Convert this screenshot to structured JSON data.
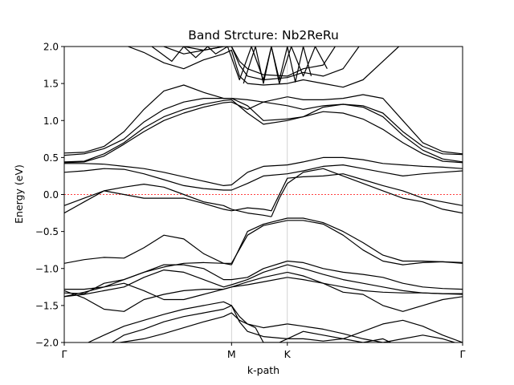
{
  "chart_data": {
    "type": "line",
    "title": "Band Strcture: Nb2ReRu",
    "xlabel": "k-path",
    "ylabel": "Energy (eV)",
    "ylim": [
      -2.0,
      2.0
    ],
    "yticks": [
      {
        "value": -2.0,
        "label": "−2.0"
      },
      {
        "value": -1.5,
        "label": "−1.5"
      },
      {
        "value": -1.0,
        "label": "−1.0"
      },
      {
        "value": -0.5,
        "label": "−0.5"
      },
      {
        "value": 0.0,
        "label": "0.0"
      },
      {
        "value": 0.5,
        "label": "0.5"
      },
      {
        "value": 1.0,
        "label": "1.0"
      },
      {
        "value": 1.5,
        "label": "1.5"
      },
      {
        "value": 2.0,
        "label": "2.0"
      }
    ],
    "xrange": [
      0,
      1
    ],
    "high_symmetry_points": [
      {
        "label": "Γ",
        "x": 0.0
      },
      {
        "label": "M",
        "x": 0.42
      },
      {
        "label": "K",
        "x": 0.56
      },
      {
        "label": "Γ",
        "x": 1.0
      }
    ],
    "fermi_level": 0.0,
    "line_color": "#000000",
    "fermi_color": "#ff0000",
    "grid": false,
    "series": [
      {
        "x": [
          0,
          0.05,
          0.1,
          0.15,
          0.2,
          0.25,
          0.3,
          0.35,
          0.4,
          0.42
        ],
        "values": [
          -1.33,
          -1.34,
          -1.2,
          -1.15,
          -1.05,
          -0.98,
          -0.93,
          -0.92,
          -0.93,
          -0.93
        ]
      },
      {
        "x": [
          0.42,
          0.46,
          0.5,
          0.56
        ],
        "values": [
          -0.93,
          -0.55,
          -0.42,
          -0.35
        ]
      },
      {
        "x": [
          0.56,
          0.6,
          0.65,
          0.7,
          0.75,
          0.8,
          0.85,
          0.9,
          0.95,
          1.0
        ],
        "values": [
          -0.35,
          -0.35,
          -0.4,
          -0.55,
          -0.75,
          -0.9,
          -0.95,
          -0.92,
          -0.91,
          -0.92
        ]
      },
      {
        "x": [
          0,
          0.05,
          0.1,
          0.15,
          0.2,
          0.25,
          0.3,
          0.35,
          0.4,
          0.42
        ],
        "values": [
          -0.93,
          -0.88,
          -0.85,
          -0.86,
          -0.72,
          -0.55,
          -0.6,
          -0.8,
          -0.93,
          -0.95
        ]
      },
      {
        "x": [
          0.42,
          0.46,
          0.5,
          0.56
        ],
        "values": [
          -0.95,
          -0.5,
          -0.4,
          -0.32
        ]
      },
      {
        "x": [
          0.56,
          0.6,
          0.65,
          0.7,
          0.75,
          0.8,
          0.85,
          0.9,
          0.95,
          1.0
        ],
        "values": [
          -0.32,
          -0.32,
          -0.38,
          -0.5,
          -0.65,
          -0.82,
          -0.9,
          -0.9,
          -0.91,
          -0.93
        ]
      },
      {
        "x": [
          0,
          0.05,
          0.1,
          0.15,
          0.2,
          0.25,
          0.3,
          0.35,
          0.4,
          0.42,
          0.46,
          0.5,
          0.52
        ],
        "values": [
          -0.15,
          -0.05,
          0.05,
          0.1,
          0.14,
          0.1,
          0.0,
          -0.1,
          -0.15,
          -0.2,
          -0.25,
          -0.28,
          -0.3
        ]
      },
      {
        "x": [
          0.52,
          0.54,
          0.56,
          0.6,
          0.65,
          0.7,
          0.75,
          0.8,
          0.85,
          0.9,
          0.95,
          1.0
        ],
        "values": [
          -0.3,
          -0.05,
          0.15,
          0.3,
          0.35,
          0.25,
          0.15,
          0.05,
          -0.05,
          -0.1,
          -0.2,
          -0.25
        ]
      },
      {
        "x": [
          0,
          0.05,
          0.1,
          0.15,
          0.2,
          0.25,
          0.3,
          0.35,
          0.4,
          0.42
        ],
        "values": [
          -0.25,
          -0.1,
          0.05,
          0.0,
          -0.05,
          -0.05,
          -0.05,
          -0.12,
          -0.2,
          -0.22
        ]
      },
      {
        "x": [
          0.42,
          0.46,
          0.5,
          0.52,
          0.56,
          0.6,
          0.65,
          0.7,
          0.75,
          0.8,
          0.85,
          0.9,
          0.95,
          1.0
        ],
        "values": [
          -0.22,
          -0.18,
          -0.2,
          -0.22,
          0.22,
          0.24,
          0.25,
          0.28,
          0.2,
          0.12,
          0.05,
          -0.05,
          -0.1,
          -0.15
        ]
      },
      {
        "x": [
          0,
          0.05,
          0.1,
          0.15,
          0.2,
          0.25,
          0.3,
          0.35,
          0.4,
          0.42,
          0.46,
          0.5,
          0.56
        ],
        "values": [
          0.3,
          0.32,
          0.35,
          0.34,
          0.28,
          0.2,
          0.12,
          0.08,
          0.06,
          0.06,
          0.15,
          0.25,
          0.28
        ]
      },
      {
        "x": [
          0.56,
          0.6,
          0.65,
          0.7,
          0.75,
          0.8,
          0.85,
          0.9,
          0.95,
          1.0
        ],
        "values": [
          0.28,
          0.32,
          0.38,
          0.4,
          0.35,
          0.3,
          0.25,
          0.28,
          0.3,
          0.32
        ]
      },
      {
        "x": [
          0,
          0.05,
          0.1,
          0.15,
          0.2,
          0.25,
          0.3,
          0.35,
          0.4,
          0.42,
          0.46,
          0.5,
          0.56
        ],
        "values": [
          0.42,
          0.42,
          0.41,
          0.38,
          0.35,
          0.3,
          0.24,
          0.18,
          0.12,
          0.13,
          0.3,
          0.38,
          0.4
        ]
      },
      {
        "x": [
          0.56,
          0.6,
          0.65,
          0.7,
          0.75,
          0.8,
          0.85,
          0.9,
          0.95,
          1.0
        ],
        "values": [
          0.4,
          0.44,
          0.5,
          0.5,
          0.47,
          0.42,
          0.4,
          0.38,
          0.37,
          0.35
        ]
      },
      {
        "x": [
          0,
          0.05,
          0.1,
          0.15,
          0.2,
          0.25,
          0.3,
          0.35,
          0.4,
          0.42,
          0.46,
          0.5,
          0.56
        ],
        "values": [
          0.53,
          0.55,
          0.62,
          0.75,
          0.98,
          1.15,
          1.25,
          1.3,
          1.3,
          1.3,
          1.28,
          1.25,
          1.32
        ]
      },
      {
        "x": [
          0.56,
          0.6,
          0.65,
          0.7,
          0.75,
          0.8,
          0.85,
          0.9,
          0.95,
          1.0
        ],
        "values": [
          1.32,
          1.28,
          1.28,
          1.3,
          1.35,
          1.3,
          1.0,
          0.7,
          0.58,
          0.55
        ]
      },
      {
        "x": [
          0,
          0.05,
          0.1,
          0.15,
          0.2,
          0.25,
          0.3,
          0.35,
          0.4,
          0.42,
          0.46,
          0.5,
          0.56
        ],
        "values": [
          0.56,
          0.57,
          0.65,
          0.85,
          1.15,
          1.4,
          1.48,
          1.38,
          1.3,
          1.3,
          1.2,
          1.0,
          1.02
        ]
      },
      {
        "x": [
          0.56,
          0.6,
          0.65,
          0.7,
          0.75,
          0.8,
          0.85,
          0.9,
          0.95,
          1.0
        ],
        "values": [
          1.02,
          1.05,
          1.18,
          1.22,
          1.2,
          1.1,
          0.85,
          0.65,
          0.55,
          0.54
        ]
      },
      {
        "x": [
          0,
          0.05,
          0.1,
          0.15,
          0.2,
          0.25,
          0.3,
          0.35,
          0.4,
          0.42,
          0.46,
          0.5,
          0.56
        ],
        "values": [
          0.44,
          0.45,
          0.55,
          0.7,
          0.9,
          1.05,
          1.15,
          1.22,
          1.27,
          1.28,
          1.1,
          0.95,
          1.0
        ]
      },
      {
        "x": [
          0.56,
          0.6,
          0.65,
          0.7,
          0.75,
          0.8,
          0.85,
          0.9,
          0.95,
          1.0
        ],
        "values": [
          1.0,
          1.05,
          1.12,
          1.1,
          1.02,
          0.88,
          0.7,
          0.55,
          0.45,
          0.43
        ]
      },
      {
        "x": [
          0,
          0.05,
          0.1,
          0.15,
          0.2,
          0.25,
          0.3,
          0.35,
          0.4,
          0.42,
          0.46,
          0.5,
          0.56
        ],
        "values": [
          0.43,
          0.44,
          0.52,
          0.68,
          0.85,
          1.0,
          1.1,
          1.18,
          1.24,
          1.25,
          1.15,
          1.25,
          1.2
        ]
      },
      {
        "x": [
          0.56,
          0.6,
          0.65,
          0.7,
          0.75,
          0.8,
          0.85,
          0.9,
          0.95,
          1.0
        ],
        "values": [
          1.2,
          1.15,
          1.2,
          1.22,
          1.18,
          1.05,
          0.8,
          0.6,
          0.48,
          0.44
        ]
      },
      {
        "x": [
          0.16,
          0.2,
          0.25,
          0.3,
          0.35,
          0.4,
          0.42,
          0.44,
          0.46,
          0.5,
          0.56,
          0.6,
          0.65,
          0.7,
          0.75,
          0.8,
          0.84
        ],
        "values": [
          2.0,
          1.92,
          1.78,
          1.7,
          1.82,
          1.9,
          1.95,
          1.6,
          1.5,
          1.48,
          1.5,
          1.55,
          1.5,
          1.45,
          1.55,
          1.8,
          2.0
        ]
      },
      {
        "x": [
          0.25,
          0.3,
          0.35,
          0.4,
          0.42,
          0.44,
          0.46,
          0.5,
          0.56,
          0.6,
          0.65,
          0.7,
          0.74
        ],
        "values": [
          2.0,
          1.9,
          1.95,
          2.0,
          2.0,
          1.75,
          1.6,
          1.55,
          1.58,
          1.65,
          1.6,
          1.7,
          2.0
        ]
      },
      {
        "x": [
          0.3,
          0.35,
          0.4,
          0.42,
          0.44,
          0.46,
          0.5,
          0.56,
          0.6,
          0.65,
          0.68
        ],
        "values": [
          2.0,
          1.95,
          2.0,
          2.0,
          1.8,
          1.7,
          1.62,
          1.6,
          1.7,
          1.75,
          2.0
        ]
      },
      {
        "x": [
          0.22,
          0.27,
          0.3,
          0.33,
          0.36,
          0.38,
          0.41,
          0.44,
          0.47,
          0.5,
          0.52,
          0.54,
          0.57,
          0.6,
          0.63,
          0.66
        ],
        "values": [
          2.0,
          1.8,
          2.0,
          1.85,
          2.0,
          1.9,
          2.0,
          1.55,
          2.0,
          1.55,
          2.0,
          1.5,
          2.0,
          1.6,
          2.0,
          1.7
        ]
      },
      {
        "x": [
          0.45,
          0.48,
          0.5,
          0.52,
          0.54,
          0.56,
          0.58,
          0.6,
          0.62
        ],
        "values": [
          1.5,
          2.0,
          1.5,
          2.0,
          1.55,
          2.0,
          1.52,
          2.0,
          1.6
        ]
      },
      {
        "x": [
          0,
          0.05,
          0.1,
          0.15,
          0.2,
          0.25,
          0.3,
          0.35,
          0.4,
          0.42,
          0.46,
          0.5,
          0.56
        ],
        "values": [
          -1.28,
          -1.28,
          -1.25,
          -1.15,
          -1.05,
          -0.95,
          -0.95,
          -1.0,
          -1.15,
          -1.15,
          -1.12,
          -1.0,
          -0.9
        ]
      },
      {
        "x": [
          0.56,
          0.6,
          0.65,
          0.7,
          0.75,
          0.8,
          0.85,
          0.9,
          0.95,
          1.0
        ],
        "values": [
          -0.9,
          -0.92,
          -1.0,
          -1.05,
          -1.08,
          -1.12,
          -1.2,
          -1.25,
          -1.27,
          -1.28
        ]
      },
      {
        "x": [
          0,
          0.05,
          0.1,
          0.15,
          0.2,
          0.25,
          0.3,
          0.35,
          0.4,
          0.42,
          0.46,
          0.5,
          0.56
        ],
        "values": [
          -1.38,
          -1.35,
          -1.3,
          -1.25,
          -1.12,
          -1.02,
          -1.05,
          -1.15,
          -1.25,
          -1.22,
          -1.15,
          -1.05,
          -0.95
        ]
      },
      {
        "x": [
          0.56,
          0.6,
          0.65,
          0.7,
          0.75,
          0.8,
          0.85,
          0.9,
          0.95,
          1.0
        ],
        "values": [
          -0.95,
          -1.0,
          -1.08,
          -1.15,
          -1.2,
          -1.25,
          -1.3,
          -1.33,
          -1.34,
          -1.35
        ]
      },
      {
        "x": [
          0,
          0.05,
          0.1,
          0.15,
          0.2,
          0.25,
          0.3,
          0.35,
          0.4,
          0.42,
          0.46,
          0.5,
          0.56
        ],
        "values": [
          -1.3,
          -1.4,
          -1.55,
          -1.58,
          -1.42,
          -1.35,
          -1.3,
          -1.28,
          -1.28,
          -1.25,
          -1.18,
          -1.12,
          -1.05
        ]
      },
      {
        "x": [
          0.56,
          0.6,
          0.65,
          0.7,
          0.75,
          0.8,
          0.85,
          0.9,
          0.95,
          1.0
        ],
        "values": [
          -1.05,
          -1.1,
          -1.2,
          -1.32,
          -1.35,
          -1.5,
          -1.58,
          -1.5,
          -1.42,
          -1.38
        ]
      },
      {
        "x": [
          0,
          0.05,
          0.1,
          0.15,
          0.2,
          0.25,
          0.3,
          0.35,
          0.4,
          0.42,
          0.46,
          0.5,
          0.56
        ],
        "values": [
          -1.38,
          -1.32,
          -1.25,
          -1.2,
          -1.3,
          -1.42,
          -1.42,
          -1.35,
          -1.28,
          -1.25,
          -1.22,
          -1.18,
          -1.12
        ]
      },
      {
        "x": [
          0.56,
          0.6,
          0.65,
          0.7,
          0.75,
          0.8,
          0.85,
          0.9,
          0.95,
          1.0
        ],
        "values": [
          -1.12,
          -1.15,
          -1.2,
          -1.25,
          -1.3,
          -1.32,
          -1.33,
          -1.33,
          -1.34,
          -1.34
        ]
      },
      {
        "x": [
          0.06,
          0.1,
          0.15,
          0.2,
          0.25,
          0.3,
          0.35,
          0.4,
          0.42,
          0.44,
          0.46,
          0.5,
          0.56
        ],
        "values": [
          -2.0,
          -1.9,
          -1.78,
          -1.7,
          -1.62,
          -1.55,
          -1.5,
          -1.45,
          -1.5,
          -1.72,
          -1.85,
          -1.92,
          -1.95
        ]
      },
      {
        "x": [
          0.56,
          0.6,
          0.65,
          0.7,
          0.75,
          0.8,
          0.85,
          0.9,
          0.95,
          1.0
        ],
        "values": [
          -1.95,
          -1.95,
          -1.98,
          -1.95,
          -1.85,
          -1.75,
          -1.7,
          -1.78,
          -1.9,
          -2.0
        ]
      },
      {
        "x": [
          0.12,
          0.15,
          0.2,
          0.25,
          0.3,
          0.35,
          0.4,
          0.42,
          0.44,
          0.46,
          0.5,
          0.56
        ],
        "values": [
          -2.0,
          -1.9,
          -1.82,
          -1.72,
          -1.65,
          -1.6,
          -1.55,
          -1.5,
          -1.65,
          -1.75,
          -1.8,
          -1.75
        ]
      },
      {
        "x": [
          0.56,
          0.6,
          0.65,
          0.7,
          0.75,
          0.8,
          0.85,
          0.9,
          0.95,
          0.98
        ],
        "values": [
          -1.75,
          -1.78,
          -1.82,
          -1.88,
          -1.95,
          -2.0,
          -1.95,
          -1.9,
          -1.95,
          -2.0
        ]
      },
      {
        "x": [
          0.14,
          0.2,
          0.25,
          0.3,
          0.35,
          0.4,
          0.42,
          0.44,
          0.48,
          0.5,
          0.54,
          0.56
        ],
        "values": [
          -2.0,
          -1.95,
          -1.88,
          -1.8,
          -1.72,
          -1.65,
          -1.6,
          -1.7,
          -1.8,
          -2.0,
          -2.0,
          -1.95
        ]
      },
      {
        "x": [
          0.56,
          0.6,
          0.65,
          0.7,
          0.75,
          0.8,
          0.82
        ],
        "values": [
          -1.95,
          -1.85,
          -1.9,
          -1.95,
          -2.0,
          -1.95,
          -2.0
        ]
      }
    ]
  }
}
